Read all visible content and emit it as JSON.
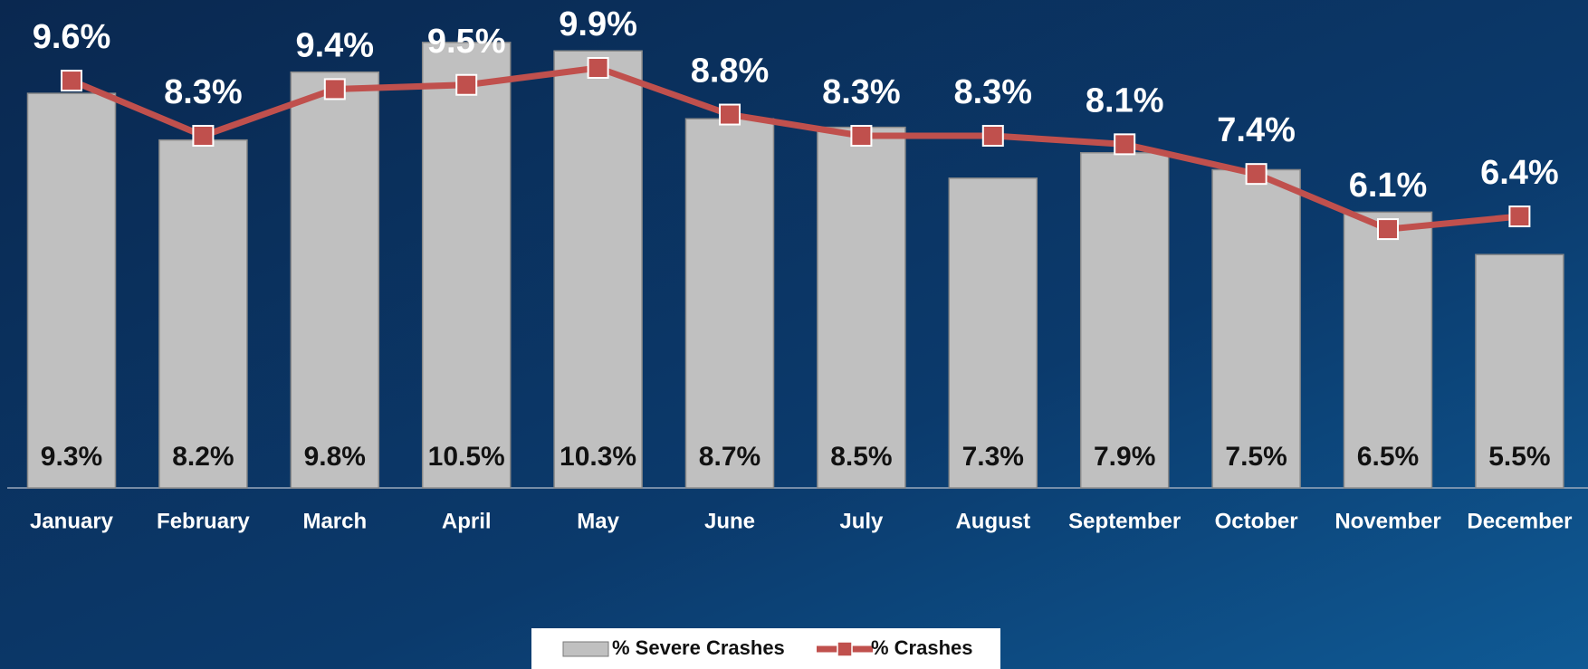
{
  "chart_data": {
    "type": "combo",
    "categories": [
      "January",
      "February",
      "March",
      "April",
      "May",
      "June",
      "July",
      "August",
      "September",
      "October",
      "November",
      "December"
    ],
    "ylim": [
      0,
      11.5
    ],
    "legend": "bottom",
    "series": [
      {
        "name": "% Severe Crashes",
        "type": "bar",
        "color": "#c0c0c0",
        "values": [
          9.3,
          8.2,
          9.8,
          10.5,
          10.3,
          8.7,
          8.5,
          7.3,
          7.9,
          7.5,
          6.5,
          5.5
        ],
        "value_labels": [
          "9.3%",
          "8.2%",
          "9.8%",
          "10.5%",
          "10.3%",
          "8.7%",
          "8.5%",
          "7.3%",
          "7.9%",
          "7.5%",
          "6.5%",
          "5.5%"
        ]
      },
      {
        "name": "% Crashes",
        "type": "line",
        "color": "#c0504d",
        "values": [
          9.6,
          8.3,
          9.4,
          9.5,
          9.9,
          8.8,
          8.3,
          8.3,
          8.1,
          7.4,
          6.1,
          6.4
        ],
        "value_labels": [
          "9.6%",
          "8.3%",
          "9.4%",
          "9.5%",
          "9.9%",
          "8.8%",
          "8.3%",
          "8.3%",
          "8.1%",
          "7.4%",
          "6.1%",
          "6.4%"
        ]
      }
    ]
  }
}
